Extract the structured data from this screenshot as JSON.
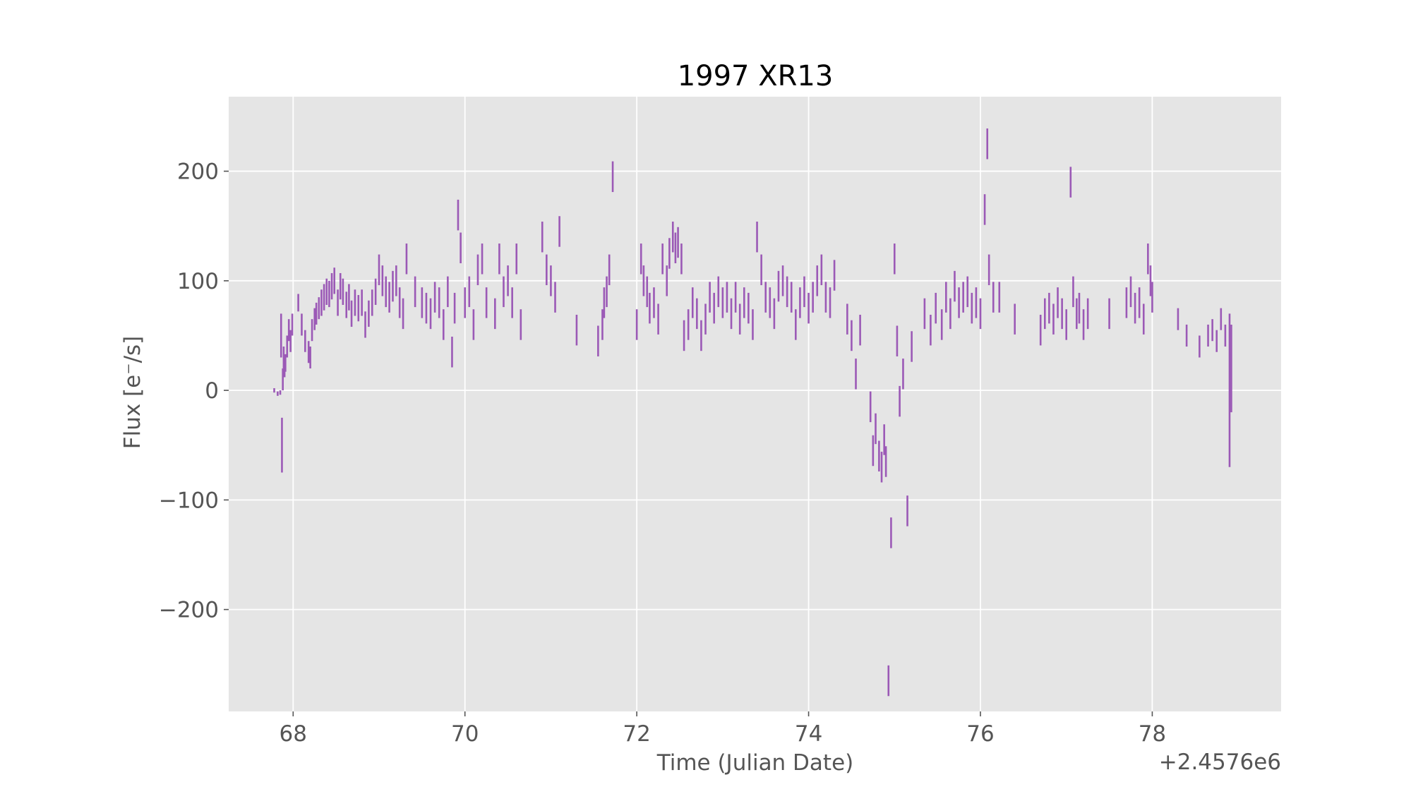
{
  "chart_data": {
    "type": "scatter",
    "title": "1997 XR13",
    "xlabel": "Time (Julian Date)",
    "ylabel": "Flux [e⁻/s]",
    "x_offset_label": "+2.4576e6",
    "xlim": [
      67.25,
      79.5
    ],
    "ylim": [
      -293,
      268
    ],
    "xticks": [
      68,
      70,
      72,
      74,
      76,
      78
    ],
    "xtick_labels": [
      "68",
      "70",
      "72",
      "74",
      "76",
      "78"
    ],
    "yticks": [
      -200,
      -100,
      0,
      100,
      200
    ],
    "ytick_labels": [
      "−200",
      "−100",
      "0",
      "100",
      "200"
    ],
    "grid": true,
    "background": "#e5e5e5",
    "marker_color": "#9b59b6",
    "series": [
      {
        "style": "errorbar",
        "x": [
          67.78,
          67.82,
          67.85,
          67.86,
          67.87,
          67.88,
          67.89,
          67.9,
          67.91,
          67.93,
          67.95,
          67.97,
          67.99,
          68.06,
          68.1,
          68.14,
          68.18,
          68.2,
          68.22,
          68.25,
          68.27,
          68.3,
          68.33,
          68.36,
          68.39,
          68.42,
          68.45,
          68.48,
          68.52,
          68.55,
          68.58,
          68.62,
          68.65,
          68.68,
          68.72,
          68.76,
          68.8,
          68.84,
          68.88,
          68.92,
          68.96,
          69.0,
          69.04,
          69.08,
          69.12,
          69.16,
          69.2,
          69.24,
          69.28,
          69.32,
          69.42,
          69.5,
          69.55,
          69.6,
          69.65,
          69.7,
          69.75,
          69.8,
          69.85,
          69.88,
          69.92,
          69.95,
          70.0,
          70.05,
          70.1,
          70.15,
          70.2,
          70.25,
          70.35,
          70.4,
          70.45,
          70.5,
          70.55,
          70.6,
          70.65,
          70.9,
          70.95,
          71.0,
          71.05,
          71.1,
          71.3,
          71.55,
          71.6,
          71.62,
          71.65,
          71.68,
          71.72,
          72.0,
          72.05,
          72.08,
          72.12,
          72.15,
          72.2,
          72.25,
          72.3,
          72.35,
          72.38,
          72.42,
          72.45,
          72.48,
          72.52,
          72.55,
          72.6,
          72.65,
          72.7,
          72.75,
          72.8,
          72.85,
          72.9,
          72.95,
          73.0,
          73.05,
          73.1,
          73.15,
          73.2,
          73.25,
          73.3,
          73.35,
          73.4,
          73.45,
          73.5,
          73.55,
          73.6,
          73.65,
          73.7,
          73.75,
          73.8,
          73.85,
          73.9,
          73.95,
          74.0,
          74.05,
          74.1,
          74.15,
          74.2,
          74.25,
          74.3,
          74.45,
          74.5,
          74.55,
          74.6,
          74.72,
          74.75,
          74.78,
          74.82,
          74.85,
          74.88,
          74.9,
          74.93,
          74.96,
          75.0,
          75.03,
          75.06,
          75.1,
          75.15,
          75.2,
          75.35,
          75.42,
          75.48,
          75.55,
          75.6,
          75.65,
          75.7,
          75.75,
          75.8,
          75.85,
          75.9,
          75.95,
          76.0,
          76.05,
          76.08,
          76.1,
          76.15,
          76.22,
          76.4,
          76.7,
          76.75,
          76.8,
          76.85,
          76.9,
          76.95,
          77.0,
          77.05,
          77.08,
          77.12,
          77.15,
          77.2,
          77.25,
          77.5,
          77.7,
          77.75,
          77.8,
          77.85,
          77.9,
          77.95,
          77.98,
          78.0,
          78.3,
          78.4,
          78.55,
          78.65,
          78.7,
          78.75,
          78.8,
          78.85,
          78.9,
          78.92
        ],
        "y": [
          0,
          -3,
          -2,
          50,
          -50,
          10,
          30,
          20,
          25,
          40,
          55,
          45,
          60,
          80,
          60,
          45,
          35,
          30,
          55,
          65,
          70,
          75,
          80,
          85,
          90,
          88,
          95,
          100,
          80,
          95,
          90,
          78,
          85,
          70,
          80,
          75,
          80,
          60,
          70,
          80,
          90,
          110,
          100,
          90,
          85,
          95,
          100,
          80,
          70,
          120,
          90,
          80,
          75,
          70,
          85,
          80,
          60,
          90,
          35,
          75,
          160,
          130,
          80,
          90,
          60,
          110,
          120,
          80,
          70,
          120,
          90,
          100,
          80,
          120,
          60,
          140,
          110,
          100,
          85,
          145,
          55,
          45,
          60,
          80,
          90,
          110,
          195,
          60,
          120,
          100,
          90,
          75,
          80,
          65,
          120,
          100,
          125,
          140,
          130,
          135,
          120,
          50,
          60,
          80,
          70,
          50,
          65,
          85,
          75,
          90,
          80,
          85,
          70,
          85,
          65,
          80,
          75,
          60,
          140,
          110,
          85,
          80,
          70,
          95,
          100,
          90,
          85,
          60,
          80,
          90,
          75,
          85,
          100,
          110,
          85,
          80,
          105,
          65,
          50,
          15,
          55,
          -15,
          -55,
          -35,
          -60,
          -70,
          -45,
          -65,
          -265,
          -130,
          120,
          45,
          -10,
          15,
          -110,
          40,
          70,
          55,
          75,
          60,
          85,
          70,
          95,
          80,
          85,
          90,
          75,
          80,
          70,
          165,
          225,
          110,
          85,
          85,
          65,
          55,
          70,
          75,
          65,
          80,
          70,
          60,
          190,
          90,
          70,
          75,
          60,
          70,
          70,
          80,
          90,
          75,
          80,
          65,
          120,
          100,
          85,
          65,
          50,
          40,
          50,
          55,
          45,
          65,
          50,
          0,
          20
        ],
        "yerr": [
          2,
          2,
          2,
          20,
          25,
          10,
          10,
          8,
          8,
          10,
          10,
          10,
          10,
          8,
          10,
          10,
          10,
          10,
          10,
          10,
          10,
          10,
          12,
          12,
          12,
          12,
          12,
          12,
          12,
          12,
          12,
          12,
          12,
          12,
          12,
          12,
          12,
          12,
          12,
          12,
          12,
          14,
          14,
          14,
          14,
          14,
          14,
          14,
          14,
          14,
          14,
          14,
          14,
          14,
          14,
          14,
          14,
          14,
          14,
          14,
          14,
          14,
          14,
          14,
          14,
          14,
          14,
          14,
          14,
          14,
          14,
          14,
          14,
          14,
          14,
          14,
          14,
          14,
          14,
          14,
          14,
          14,
          14,
          14,
          14,
          14,
          14,
          14,
          14,
          14,
          14,
          14,
          14,
          14,
          14,
          14,
          14,
          14,
          14,
          14,
          14,
          14,
          14,
          14,
          14,
          14,
          14,
          14,
          14,
          14,
          14,
          14,
          14,
          14,
          14,
          14,
          14,
          14,
          14,
          14,
          14,
          14,
          14,
          14,
          14,
          14,
          14,
          14,
          14,
          14,
          14,
          14,
          14,
          14,
          14,
          14,
          14,
          14,
          14,
          14,
          14,
          14,
          14,
          14,
          14,
          14,
          14,
          14,
          14,
          14,
          14,
          14,
          14,
          14,
          14,
          14,
          14,
          14,
          14,
          14,
          14,
          14,
          14,
          14,
          14,
          14,
          14,
          14,
          14,
          14,
          14,
          14,
          14,
          14,
          14,
          14,
          14,
          14,
          14,
          14,
          14,
          14,
          14,
          14,
          14,
          14,
          14,
          14,
          14,
          14,
          14,
          14,
          14,
          14,
          14,
          14,
          14,
          10,
          10,
          10,
          10,
          10,
          10,
          10,
          10,
          70,
          40
        ]
      }
    ]
  }
}
